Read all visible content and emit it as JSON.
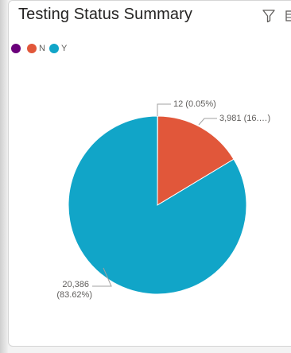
{
  "visual": {
    "title": "Testing Status Summary",
    "icons": [
      "filter-icon",
      "focus-mode-icon"
    ]
  },
  "legend": [
    {
      "label": "",
      "color": "#6b007b"
    },
    {
      "label": "N",
      "color": "#e1573a"
    },
    {
      "label": "Y",
      "color": "#11a5c8"
    }
  ],
  "chart_data": {
    "type": "pie",
    "title": "Testing Status Summary",
    "categories": [
      "",
      "N",
      "Y"
    ],
    "values": [
      12,
      3981,
      20386
    ],
    "percent_labels": [
      "12 (0.05%)",
      "3,981 (16.…)",
      "20,386 (83.62%)"
    ],
    "colors": [
      "#6b007b",
      "#e1573a",
      "#11a5c8"
    ],
    "legend_position": "top-left"
  }
}
